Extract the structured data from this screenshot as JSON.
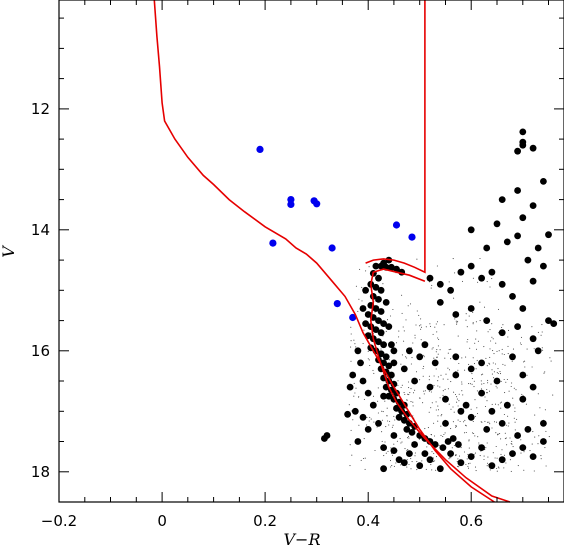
{
  "chart_data": {
    "type": "scatter",
    "title": "",
    "xlabel": "V−R",
    "ylabel": "V",
    "xlim": [
      -0.2,
      0.78
    ],
    "ylim": [
      18.5,
      10.2
    ],
    "y_inverted": true,
    "grid": false,
    "x_ticks": [
      -0.2,
      0,
      0.2,
      0.4,
      0.6
    ],
    "x_tick_labels": [
      "−0.2",
      "0",
      "0.2",
      "0.4",
      "0.6"
    ],
    "y_ticks": [
      12,
      14,
      16,
      18
    ],
    "y_tick_labels": [
      "12",
      "14",
      "16",
      "18"
    ],
    "colors": {
      "members": "#000000",
      "blue_stragglers": "#0000ee",
      "field": "#444444",
      "isochrone": "#e60000"
    },
    "series": [
      {
        "kind": "blue_dots",
        "points": [
          [
            0.19,
            12.67
          ],
          [
            0.25,
            13.5
          ],
          [
            0.25,
            13.58
          ],
          [
            0.295,
            13.52
          ],
          [
            0.3,
            13.57
          ],
          [
            0.215,
            14.22
          ],
          [
            0.33,
            14.3
          ],
          [
            0.455,
            13.92
          ],
          [
            0.485,
            14.12
          ],
          [
            0.34,
            15.22
          ],
          [
            0.37,
            15.45
          ]
        ]
      },
      {
        "kind": "black_dots",
        "points": [
          [
            0.415,
            14.6
          ],
          [
            0.425,
            14.6
          ],
          [
            0.435,
            14.62
          ],
          [
            0.445,
            14.62
          ],
          [
            0.455,
            14.65
          ],
          [
            0.465,
            14.7
          ],
          [
            0.43,
            14.55
          ],
          [
            0.44,
            14.5
          ],
          [
            0.41,
            14.72
          ],
          [
            0.42,
            14.8
          ],
          [
            0.405,
            14.9
          ],
          [
            0.415,
            14.95
          ],
          [
            0.425,
            15.0
          ],
          [
            0.41,
            15.1
          ],
          [
            0.42,
            15.15
          ],
          [
            0.405,
            15.25
          ],
          [
            0.415,
            15.3
          ],
          [
            0.425,
            15.35
          ],
          [
            0.4,
            15.4
          ],
          [
            0.41,
            15.45
          ],
          [
            0.42,
            15.5
          ],
          [
            0.43,
            15.55
          ],
          [
            0.405,
            15.6
          ],
          [
            0.415,
            15.65
          ],
          [
            0.425,
            15.7
          ],
          [
            0.4,
            15.75
          ],
          [
            0.41,
            15.8
          ],
          [
            0.42,
            15.85
          ],
          [
            0.43,
            15.9
          ],
          [
            0.405,
            15.95
          ],
          [
            0.415,
            16.0
          ],
          [
            0.425,
            16.05
          ],
          [
            0.435,
            16.1
          ],
          [
            0.42,
            16.15
          ],
          [
            0.43,
            16.2
          ],
          [
            0.44,
            16.25
          ],
          [
            0.425,
            16.3
          ],
          [
            0.435,
            16.35
          ],
          [
            0.445,
            16.4
          ],
          [
            0.43,
            16.45
          ],
          [
            0.44,
            16.5
          ],
          [
            0.45,
            16.55
          ],
          [
            0.435,
            16.6
          ],
          [
            0.445,
            16.65
          ],
          [
            0.455,
            16.7
          ],
          [
            0.44,
            16.75
          ],
          [
            0.45,
            16.8
          ],
          [
            0.46,
            16.85
          ],
          [
            0.47,
            16.9
          ],
          [
            0.455,
            16.95
          ],
          [
            0.465,
            17.0
          ],
          [
            0.475,
            17.05
          ],
          [
            0.46,
            17.1
          ],
          [
            0.47,
            17.15
          ],
          [
            0.48,
            17.2
          ],
          [
            0.49,
            17.25
          ],
          [
            0.475,
            17.3
          ],
          [
            0.485,
            17.35
          ],
          [
            0.5,
            17.4
          ],
          [
            0.51,
            17.45
          ],
          [
            0.52,
            17.5
          ],
          [
            0.53,
            17.55
          ],
          [
            0.545,
            17.6
          ],
          [
            0.555,
            17.5
          ],
          [
            0.565,
            17.45
          ],
          [
            0.575,
            17.55
          ],
          [
            0.395,
            15.0
          ],
          [
            0.435,
            15.2
          ],
          [
            0.44,
            15.6
          ],
          [
            0.445,
            15.9
          ],
          [
            0.45,
            16.0
          ],
          [
            0.39,
            15.3
          ],
          [
            0.395,
            15.55
          ],
          [
            0.38,
            16.0
          ],
          [
            0.385,
            16.2
          ],
          [
            0.37,
            16.4
          ],
          [
            0.365,
            16.6
          ],
          [
            0.39,
            16.5
          ],
          [
            0.4,
            16.7
          ],
          [
            0.41,
            16.9
          ],
          [
            0.39,
            17.1
          ],
          [
            0.4,
            17.3
          ],
          [
            0.38,
            17.5
          ],
          [
            0.42,
            17.2
          ],
          [
            0.43,
            17.6
          ],
          [
            0.45,
            17.4
          ],
          [
            0.46,
            17.8
          ],
          [
            0.48,
            17.7
          ],
          [
            0.5,
            17.9
          ],
          [
            0.52,
            17.8
          ],
          [
            0.54,
            17.95
          ],
          [
            0.56,
            17.7
          ],
          [
            0.58,
            17.85
          ],
          [
            0.6,
            17.75
          ],
          [
            0.62,
            17.6
          ],
          [
            0.64,
            17.9
          ],
          [
            0.66,
            17.8
          ],
          [
            0.68,
            17.7
          ],
          [
            0.7,
            17.6
          ],
          [
            0.72,
            17.75
          ],
          [
            0.74,
            17.5
          ],
          [
            0.43,
            17.95
          ],
          [
            0.47,
            17.85
          ],
          [
            0.51,
            17.7
          ],
          [
            0.36,
            17.05
          ],
          [
            0.375,
            17.0
          ],
          [
            0.315,
            17.45
          ],
          [
            0.32,
            17.4
          ],
          [
            0.45,
            16.2
          ],
          [
            0.47,
            16.3
          ],
          [
            0.5,
            16.1
          ],
          [
            0.49,
            16.5
          ],
          [
            0.52,
            16.6
          ],
          [
            0.55,
            16.8
          ],
          [
            0.48,
            16.0
          ],
          [
            0.51,
            15.9
          ],
          [
            0.53,
            16.2
          ],
          [
            0.57,
            16.4
          ],
          [
            0.6,
            16.3
          ],
          [
            0.62,
            16.7
          ],
          [
            0.65,
            16.5
          ],
          [
            0.67,
            16.9
          ],
          [
            0.7,
            16.8
          ],
          [
            0.72,
            16.6
          ],
          [
            0.55,
            17.2
          ],
          [
            0.58,
            17.0
          ],
          [
            0.6,
            17.1
          ],
          [
            0.63,
            17.3
          ],
          [
            0.66,
            17.2
          ],
          [
            0.69,
            17.4
          ],
          [
            0.71,
            17.3
          ],
          [
            0.74,
            17.2
          ],
          [
            0.52,
            14.8
          ],
          [
            0.54,
            14.9
          ],
          [
            0.56,
            15.0
          ],
          [
            0.58,
            14.7
          ],
          [
            0.6,
            14.6
          ],
          [
            0.62,
            14.8
          ],
          [
            0.64,
            14.7
          ],
          [
            0.66,
            14.9
          ],
          [
            0.68,
            15.1
          ],
          [
            0.7,
            15.3
          ],
          [
            0.54,
            15.2
          ],
          [
            0.57,
            15.4
          ],
          [
            0.6,
            15.3
          ],
          [
            0.63,
            15.5
          ],
          [
            0.66,
            15.7
          ],
          [
            0.69,
            15.6
          ],
          [
            0.72,
            15.8
          ],
          [
            0.75,
            15.5
          ],
          [
            0.76,
            15.55
          ],
          [
            0.73,
            16.0
          ],
          [
            0.6,
            14.0
          ],
          [
            0.63,
            14.3
          ],
          [
            0.65,
            13.9
          ],
          [
            0.67,
            14.2
          ],
          [
            0.69,
            14.1
          ],
          [
            0.71,
            14.5
          ],
          [
            0.73,
            14.3
          ],
          [
            0.75,
            14.08
          ],
          [
            0.74,
            14.6
          ],
          [
            0.72,
            14.85
          ],
          [
            0.66,
            13.5
          ],
          [
            0.69,
            13.35
          ],
          [
            0.7,
            13.8
          ],
          [
            0.72,
            13.6
          ],
          [
            0.74,
            13.2
          ],
          [
            0.69,
            12.7
          ],
          [
            0.7,
            12.6
          ],
          [
            0.7,
            12.38
          ],
          [
            0.72,
            12.65
          ],
          [
            0.7,
            12.55
          ],
          [
            0.57,
            16.1
          ],
          [
            0.62,
            16.2
          ],
          [
            0.68,
            16.1
          ],
          [
            0.7,
            16.4
          ],
          [
            0.59,
            16.9
          ],
          [
            0.64,
            17.0
          ],
          [
            0.46,
            16.95
          ],
          [
            0.43,
            16.75
          ],
          [
            0.49,
            17.55
          ],
          [
            0.45,
            17.65
          ]
        ]
      },
      {
        "kind": "field_dots",
        "count": 700,
        "x_range": [
          0.36,
          0.76
        ],
        "y_range": [
          14.4,
          18.0
        ]
      }
    ],
    "isochrone": [
      [
        [
          -0.015,
          10.2
        ],
        [
          -0.01,
          10.8
        ],
        [
          -0.005,
          11.3
        ],
        [
          0.0,
          11.9
        ],
        [
          0.005,
          12.2
        ],
        [
          0.025,
          12.5
        ],
        [
          0.05,
          12.8
        ],
        [
          0.08,
          13.1
        ],
        [
          0.1,
          13.25
        ],
        [
          0.13,
          13.5
        ],
        [
          0.16,
          13.7
        ],
        [
          0.2,
          13.95
        ],
        [
          0.24,
          14.15
        ],
        [
          0.26,
          14.3
        ],
        [
          0.28,
          14.4
        ],
        [
          0.3,
          14.55
        ],
        [
          0.33,
          14.85
        ],
        [
          0.355,
          15.1
        ],
        [
          0.375,
          15.4
        ],
        [
          0.39,
          15.7
        ],
        [
          0.41,
          16.0
        ],
        [
          0.43,
          16.3
        ],
        [
          0.45,
          16.6
        ],
        [
          0.475,
          16.95
        ],
        [
          0.5,
          17.3
        ],
        [
          0.53,
          17.65
        ],
        [
          0.56,
          17.95
        ],
        [
          0.6,
          18.25
        ],
        [
          0.645,
          18.5
        ]
      ],
      [
        [
          0.395,
          14.55
        ],
        [
          0.41,
          14.5
        ],
        [
          0.43,
          14.48
        ],
        [
          0.45,
          14.5
        ],
        [
          0.47,
          14.55
        ],
        [
          0.49,
          14.62
        ],
        [
          0.51,
          14.7
        ],
        [
          0.51,
          10.2
        ]
      ],
      [
        [
          0.51,
          14.85
        ],
        [
          0.48,
          14.75
        ],
        [
          0.455,
          14.7
        ],
        [
          0.43,
          14.65
        ],
        [
          0.41,
          14.7
        ],
        [
          0.405,
          14.9
        ],
        [
          0.41,
          15.2
        ],
        [
          0.405,
          15.5
        ],
        [
          0.41,
          15.8
        ],
        [
          0.42,
          16.1
        ],
        [
          0.43,
          16.35
        ],
        [
          0.44,
          16.6
        ],
        [
          0.455,
          16.85
        ],
        [
          0.48,
          17.15
        ],
        [
          0.51,
          17.45
        ],
        [
          0.55,
          17.8
        ],
        [
          0.59,
          18.1
        ],
        [
          0.64,
          18.4
        ],
        [
          0.675,
          18.5
        ]
      ]
    ]
  }
}
